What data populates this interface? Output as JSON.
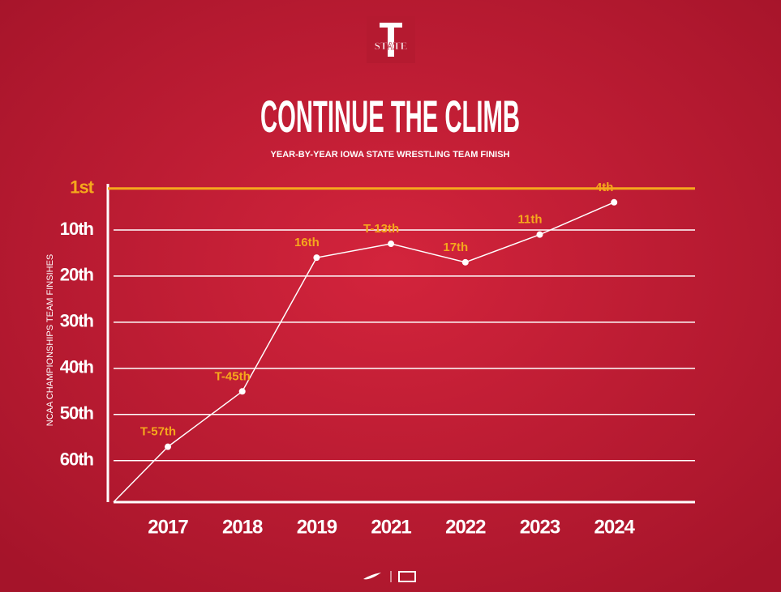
{
  "logo_text": "STATE",
  "chart_data": {
    "type": "line",
    "title": "CONTINUE THE CLIMB",
    "subtitle": "YEAR-BY-YEAR IOWA STATE WRESTLING TEAM FINISH",
    "y_label": "NCAA CHAMPIONSHIPS TEAM FINSIHES",
    "categories": [
      "2017",
      "2018",
      "2019",
      "2021",
      "2022",
      "2023",
      "2024"
    ],
    "values": [
      57,
      45,
      16,
      13,
      17,
      11,
      4
    ],
    "value_labels": [
      "T-57th",
      "T-45th",
      "16th",
      "T-13th",
      "17th",
      "11th",
      "4th"
    ],
    "color": "#ffffff",
    "label_color": "#f5a81c",
    "ylim": [
      69,
      0
    ],
    "yticks": [
      {
        "value": 1,
        "label": "1st"
      },
      {
        "value": 10,
        "label": "10th"
      },
      {
        "value": 20,
        "label": "20th"
      },
      {
        "value": 30,
        "label": "30th"
      },
      {
        "value": 40,
        "label": "40th"
      },
      {
        "value": 50,
        "label": "50th"
      },
      {
        "value": 60,
        "label": "60th"
      }
    ],
    "grid": true
  }
}
